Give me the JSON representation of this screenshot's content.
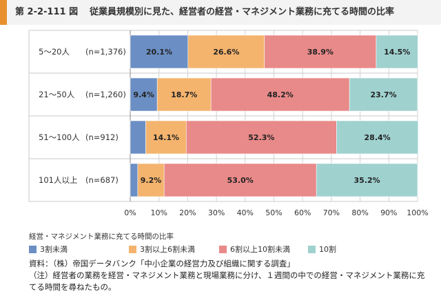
{
  "header": {
    "figure_number": "第 2-2-111 図",
    "title": "従業員規模別に見た、経営者の経営・マネジメント業務に充てる時間の比率"
  },
  "chart_data": {
    "type": "bar",
    "orientation": "horizontal",
    "stacked": true,
    "categories": [
      {
        "label": "5〜20人",
        "n": "(n=1,376)"
      },
      {
        "label": "21〜50人",
        "n": "(n=1,260)"
      },
      {
        "label": "51〜100人",
        "n": "(n=912)"
      },
      {
        "label": "101人以上",
        "n": "(n=687)"
      }
    ],
    "series": [
      {
        "name": "3割未満",
        "color": "#6b8fc4",
        "values": [
          20.1,
          9.4,
          5.4,
          2.6
        ],
        "labels": [
          "20.1%",
          "9.4%",
          "",
          ""
        ]
      },
      {
        "name": "3割以上6割未満",
        "color": "#f4b46e",
        "values": [
          26.6,
          18.7,
          14.1,
          9.2
        ],
        "labels": [
          "26.6%",
          "18.7%",
          "14.1%",
          "9.2%"
        ]
      },
      {
        "name": "6割以上10割未満",
        "color": "#e88a89",
        "values": [
          38.9,
          48.2,
          52.3,
          53.0
        ],
        "labels": [
          "38.9%",
          "48.2%",
          "52.3%",
          "53.0%"
        ]
      },
      {
        "name": "10割",
        "color": "#9fd1cf",
        "values": [
          14.5,
          23.7,
          28.4,
          35.2
        ],
        "labels": [
          "14.5%",
          "23.7%",
          "28.4%",
          "35.2%"
        ]
      }
    ],
    "xlim": [
      0,
      100
    ],
    "xticks": [
      "0%",
      "10%",
      "20%",
      "30%",
      "40%",
      "50%",
      "60%",
      "70%",
      "80%",
      "90%",
      "100%"
    ],
    "legend_title": "経営・マネジメント業務に充てる時間の比率",
    "legend_position": "bottom",
    "grid": true
  },
  "notes": {
    "source": "資料：（株）帝国データバンク「中小企業の経営力及び組織に関する調査」",
    "note_line1": "（注）経営者の業務を経営・マネジメント業務と現場業務に分け、１週間の中での経営・マネジメント業務に充",
    "note_line2": "てる時間を尋ねたもの。"
  }
}
